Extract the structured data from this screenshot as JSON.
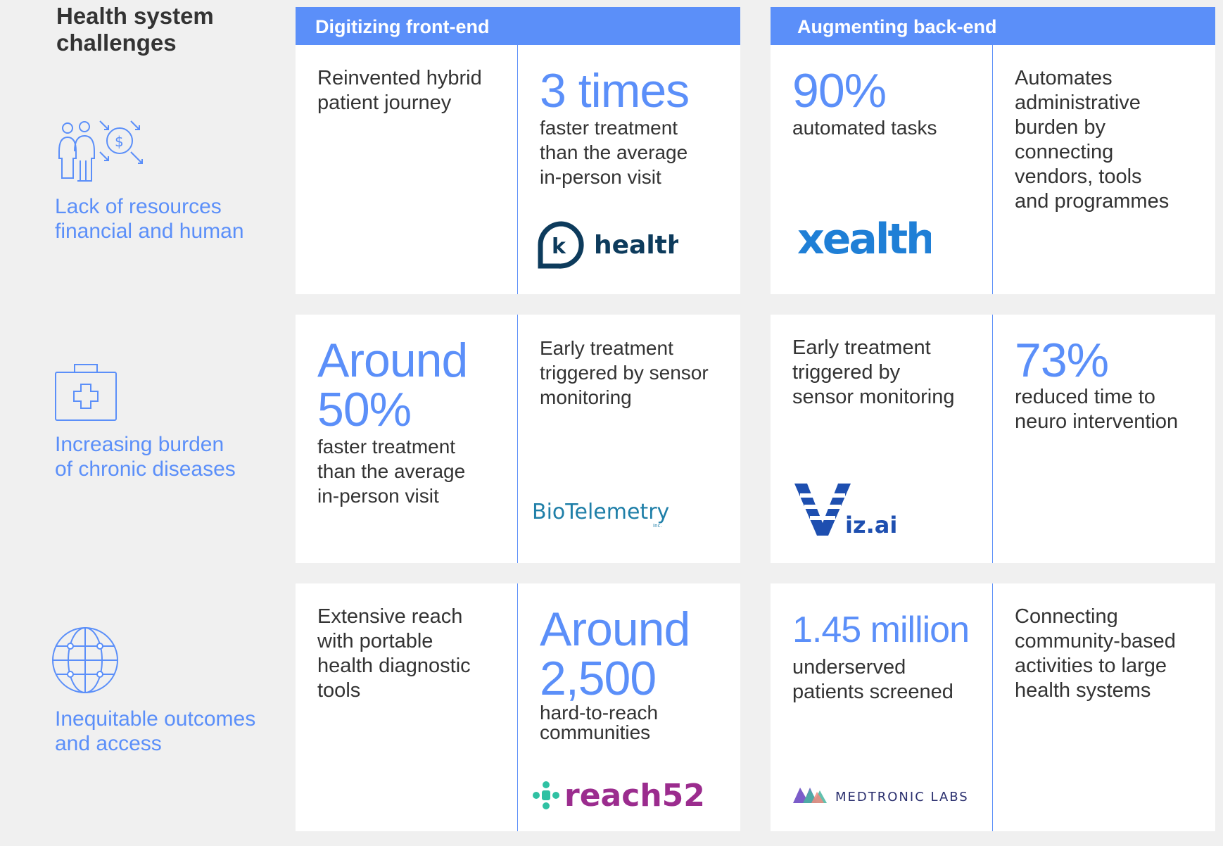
{
  "title": "Health system challenges",
  "headers": {
    "front": "Digitizing front-end",
    "back": "Augmenting back-end"
  },
  "challenges": [
    {
      "line1": "Lack of resources",
      "line2": "financial and human",
      "icon": "people-dollar-icon"
    },
    {
      "line1": "Increasing burden",
      "line2": "of chronic diseases",
      "icon": "medical-kit-icon"
    },
    {
      "line1": "Inequitable outcomes",
      "line2": "and access",
      "icon": "globe-icon"
    }
  ],
  "rows": [
    {
      "front_desc": [
        "Reinvented hybrid",
        "patient journey"
      ],
      "front_stat": {
        "big": [
          "3 times"
        ],
        "text": [
          "faster treatment",
          "than the average",
          "in-person visit"
        ]
      },
      "front_logo": {
        "mark": "k",
        "text": "health"
      },
      "back_stat": {
        "big": [
          "90%"
        ],
        "text": [
          "automated tasks"
        ]
      },
      "back_logo": "xealth",
      "back_desc": [
        "Automates",
        "administrative",
        "burden by",
        "connecting",
        "vendors, tools",
        "and programmes"
      ]
    },
    {
      "front_stat": {
        "big": [
          "Around",
          "50%"
        ],
        "text": [
          "faster treatment",
          "than the average",
          "in-person visit"
        ]
      },
      "front_desc": [
        "Early treatment",
        "triggered by sensor",
        "monitoring"
      ],
      "front_logo": {
        "text": "BioTelemetry",
        "sub": "Inc."
      },
      "back_desc": [
        "Early treatment",
        "triggered by",
        "sensor monitoring"
      ],
      "back_logo": "iz.ai",
      "back_stat": {
        "big": [
          "73%"
        ],
        "text": [
          "reduced time to",
          "neuro intervention"
        ]
      }
    },
    {
      "front_desc": [
        "Extensive reach",
        "with portable",
        "health diagnostic",
        "tools"
      ],
      "front_stat": {
        "big": [
          "Around",
          "2,500"
        ],
        "text": [
          "hard-to-reach",
          "communities"
        ]
      },
      "front_logo": "reach52",
      "back_stat": {
        "big": [
          "1.45 million"
        ],
        "text": [
          "underserved",
          "patients screened"
        ]
      },
      "back_logo": "MEDTRONIC LABS",
      "back_desc": [
        "Connecting",
        "community-based",
        "activities to large",
        "health systems"
      ]
    }
  ],
  "colors": {
    "accent": "#5b8ff9",
    "text": "#333333",
    "bg": "#f0f0f0",
    "khealth": "#0d3b5c",
    "xealth": "#1f7fd6",
    "reach52": "#9b2c8e",
    "reach52_mark": "#2fc1a3"
  }
}
